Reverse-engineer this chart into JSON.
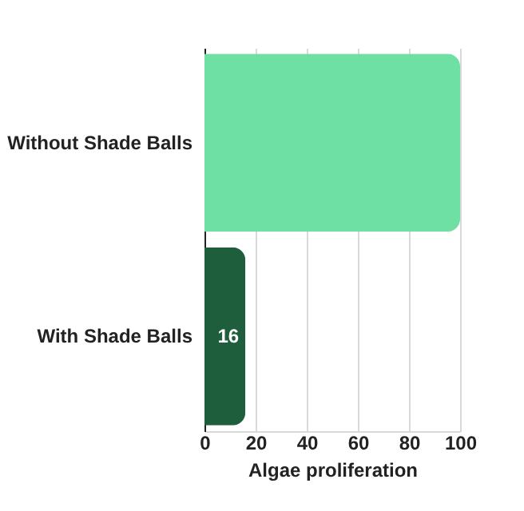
{
  "chart_data": {
    "type": "bar",
    "orientation": "horizontal",
    "categories": [
      "Without Shade Balls",
      "With Shade Balls"
    ],
    "values": [
      100,
      16
    ],
    "colors": [
      "#6ee0a4",
      "#1f5e3d"
    ],
    "value_labels": [
      null,
      "16"
    ],
    "xlabel": "Algae proliferation",
    "xlim": [
      0,
      100
    ],
    "xticks": [
      0,
      20,
      40,
      60,
      80,
      100
    ],
    "grid": "x"
  }
}
